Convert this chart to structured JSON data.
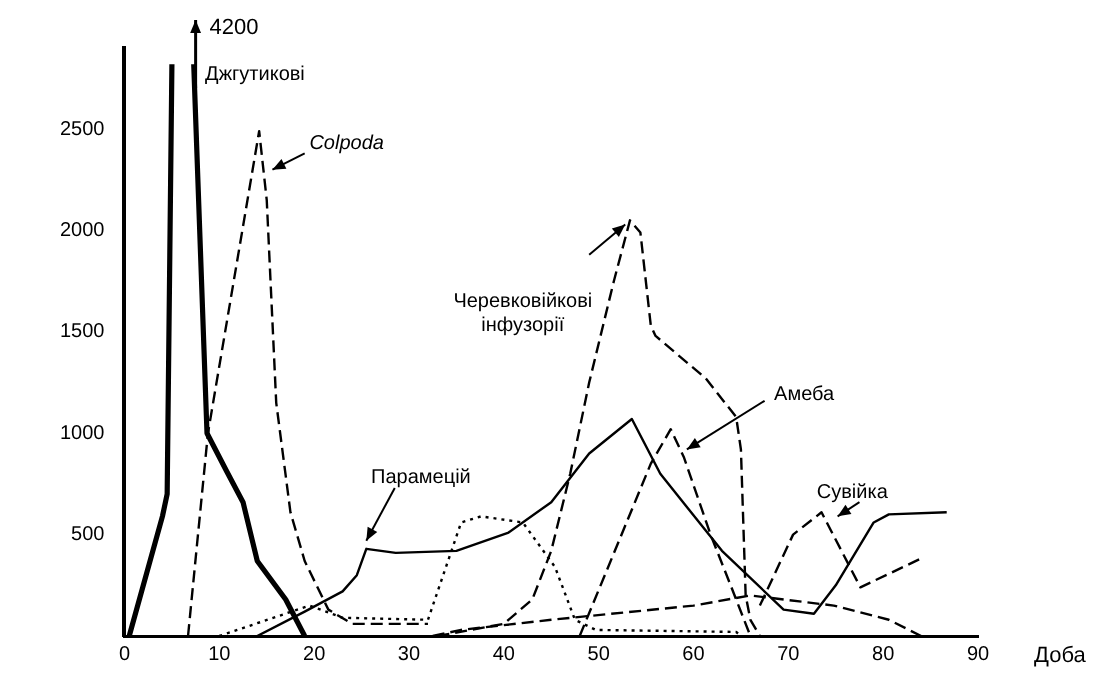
{
  "chart_data": {
    "type": "line",
    "xlabel": "Доба",
    "xlim": [
      0,
      90
    ],
    "xticks": [
      0,
      10,
      20,
      30,
      40,
      50,
      60,
      70,
      80,
      90
    ],
    "ylim": [
      0,
      2900
    ],
    "yticks": [
      500,
      1000,
      1500,
      2000,
      2500
    ],
    "grid": false,
    "legend": false,
    "marker": "none",
    "annotations": [
      "4200"
    ],
    "series": [
      {
        "name": "Джгутикові",
        "color": "#000000",
        "line_style": "solid",
        "x": [
          0.5,
          4,
          4.5,
          5,
          6,
          7.3,
          8.7,
          10.8,
          12.5,
          14,
          17,
          19
        ],
        "values": [
          0,
          590,
          700,
          2820,
          null,
          2820,
          1000,
          810,
          660,
          370,
          180,
          0
        ]
      },
      {
        "name": "Colpoda",
        "color": "#000000",
        "line_style": "dashed",
        "x": [
          6.7,
          8.8,
          14.2,
          15,
          16,
          17.5,
          19,
          21.5,
          24,
          32
        ],
        "values": [
          0,
          1000,
          2490,
          2150,
          1150,
          610,
          370,
          130,
          60,
          60
        ]
      },
      {
        "color": "#000000",
        "line_style": "dotted",
        "x": [
          10,
          19.5,
          23,
          32,
          35.5,
          37.6,
          42,
          45.4,
          47.5,
          49.7,
          64.5,
          65
        ],
        "values": [
          0,
          150,
          90,
          80,
          560,
          590,
          560,
          340,
          80,
          30,
          20,
          0
        ]
      },
      {
        "name": "Черевковійкові інфузорії",
        "color": "#000000",
        "line_style": "dashed",
        "x": [
          33,
          40,
          43,
          45,
          47,
          49,
          51.6,
          53.3,
          54.4,
          55.5,
          56,
          61.3,
          64.5,
          65,
          65.5,
          66,
          67
        ],
        "values": [
          0,
          60,
          180,
          420,
          800,
          1250,
          1750,
          2050,
          1990,
          1530,
          1480,
          1270,
          1080,
          920,
          200,
          80,
          0
        ]
      },
      {
        "name": "Парамецій",
        "color": "#000000",
        "line_style": "solid",
        "x": [
          14,
          19,
          23,
          24.5,
          25.5,
          28.6,
          35,
          40.5,
          45,
          49,
          53.5,
          56.5,
          63,
          69.5,
          72.7,
          75,
          79,
          80.6,
          86.7
        ],
        "values": [
          0,
          120,
          220,
          300,
          430,
          410,
          420,
          510,
          660,
          900,
          1070,
          800,
          420,
          130,
          110,
          250,
          560,
          600,
          610
        ]
      },
      {
        "name": "Амеба",
        "color": "#000000",
        "line_style": "dashed",
        "x": [
          48,
          55.5,
          57.6,
          59,
          61.8,
          64,
          66
        ],
        "values": [
          0,
          850,
          1020,
          880,
          500,
          240,
          0
        ]
      },
      {
        "name": "Сувійка",
        "color": "#000000",
        "line_style": "dashed",
        "x": [
          67,
          70.5,
          73.5,
          77.6,
          83.9
        ],
        "values": [
          150,
          500,
          610,
          240,
          380
        ]
      },
      {
        "color": "#000000",
        "line_style": "dashed",
        "x": [
          32.5,
          35.5,
          45,
          60,
          66,
          74.8,
          80.6,
          84
        ],
        "values": [
          0,
          30,
          80,
          150,
          200,
          150,
          80,
          0
        ]
      }
    ]
  }
}
